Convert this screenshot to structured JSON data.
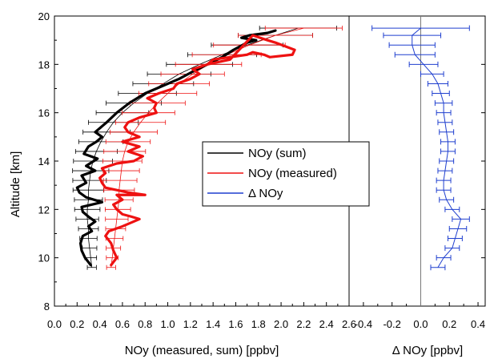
{
  "chart_data": [
    {
      "type": "line",
      "panel": "left",
      "xlabel": "NOy (measured, sum) [ppbv]",
      "ylabel": "Altitude [km]",
      "xlim": [
        0.0,
        2.6
      ],
      "ylim": [
        8,
        20
      ],
      "xticks": [
        "0.0",
        "0.2",
        "0.4",
        "0.6",
        "0.8",
        "1.0",
        "1.2",
        "1.4",
        "1.6",
        "1.8",
        "2.0",
        "2.2",
        "2.4",
        "2.6"
      ],
      "yticks": [
        "8",
        "10",
        "12",
        "14",
        "16",
        "18",
        "20"
      ],
      "legend": {
        "position": "center-right",
        "entries": [
          "NOy (sum)",
          "NOy (measured)",
          "Δ NOy"
        ]
      },
      "series": [
        {
          "name": "NOy (sum)",
          "color": "#000000",
          "style": "thick-trace",
          "x": [
            0.32,
            0.27,
            0.24,
            0.23,
            0.25,
            0.33,
            0.3,
            0.36,
            0.3,
            0.25,
            0.24,
            0.42,
            0.28,
            0.22,
            0.2,
            0.28,
            0.24,
            0.36,
            0.28,
            0.38,
            0.26,
            0.3,
            0.37,
            0.42,
            0.36,
            0.46,
            0.55,
            0.66,
            0.8,
            0.95,
            1.1,
            1.22,
            1.35,
            1.48,
            1.58,
            1.7,
            1.78,
            1.65,
            1.72,
            1.88,
            1.95
          ],
          "y": [
            9.7,
            10.0,
            10.3,
            10.6,
            10.9,
            11.1,
            11.3,
            11.5,
            11.7,
            11.9,
            12.1,
            12.3,
            12.5,
            12.7,
            12.9,
            13.1,
            13.4,
            13.6,
            13.8,
            14.1,
            14.3,
            14.6,
            14.8,
            15.0,
            15.2,
            15.6,
            16.0,
            16.4,
            16.8,
            17.1,
            17.4,
            17.7,
            18.0,
            18.3,
            18.6,
            18.9,
            19.0,
            19.1,
            19.2,
            19.3,
            19.4
          ]
        },
        {
          "name": "NOy (measured)",
          "color": "#ee1111",
          "style": "thick-trace",
          "x": [
            0.5,
            0.55,
            0.52,
            0.5,
            0.45,
            0.48,
            0.6,
            0.7,
            0.75,
            0.68,
            0.6,
            0.55,
            0.52,
            0.6,
            0.55,
            0.8,
            0.65,
            0.55,
            0.45,
            0.42,
            0.4,
            0.45,
            0.42,
            0.55,
            0.7,
            0.78,
            0.65,
            0.75,
            0.6,
            0.75,
            0.65,
            0.62,
            0.65,
            0.75,
            0.9,
            0.88,
            0.9,
            0.82,
            0.92,
            1.05,
            1.08,
            1.2,
            1.28,
            1.22,
            1.35,
            1.4,
            1.55,
            1.7,
            1.75,
            1.85,
            1.9,
            2.1,
            2.12,
            1.95,
            1.88,
            1.75,
            1.55,
            1.45,
            1.35
          ],
          "y": [
            9.7,
            10.0,
            10.3,
            10.6,
            10.9,
            11.1,
            11.3,
            11.5,
            11.6,
            11.7,
            11.8,
            12.0,
            12.2,
            12.4,
            12.6,
            12.6,
            12.7,
            12.8,
            12.9,
            13.1,
            13.3,
            13.5,
            13.7,
            13.9,
            14.0,
            14.2,
            14.4,
            14.6,
            14.8,
            15.0,
            15.2,
            15.4,
            15.6,
            15.8,
            16.0,
            16.2,
            16.4,
            16.6,
            16.8,
            17.0,
            17.2,
            17.4,
            17.6,
            17.8,
            18.0,
            18.2,
            18.3,
            18.4,
            18.5,
            18.4,
            18.3,
            18.4,
            18.6,
            18.9,
            19.0,
            19.2,
            18.2,
            18.1,
            18.0
          ]
        }
      ],
      "profiles": [
        {
          "color": "#000000",
          "y": [
            9.6,
            10.0,
            10.4,
            10.8,
            11.2,
            11.6,
            12.0,
            12.4,
            12.8,
            13.2,
            13.6,
            14.0,
            14.4,
            14.8,
            15.2,
            15.6,
            16.0,
            16.4,
            16.8,
            17.2,
            17.6,
            18.0,
            18.4,
            18.8,
            19.2,
            19.5
          ],
          "x": [
            0.33,
            0.32,
            0.31,
            0.3,
            0.3,
            0.29,
            0.29,
            0.3,
            0.3,
            0.31,
            0.32,
            0.34,
            0.37,
            0.41,
            0.46,
            0.52,
            0.6,
            0.7,
            0.82,
            0.96,
            1.1,
            1.28,
            1.48,
            1.7,
            1.95,
            2.15
          ]
        },
        {
          "color": "#ee1111",
          "y": [
            9.6,
            10.0,
            10.4,
            10.8,
            11.2,
            11.6,
            12.0,
            12.4,
            12.8,
            13.2,
            13.6,
            14.0,
            14.4,
            14.8,
            15.2,
            15.6,
            16.0,
            16.4,
            16.8,
            17.2,
            17.6,
            18.0,
            18.4,
            18.8,
            19.2,
            19.5
          ],
          "x": [
            0.5,
            0.51,
            0.52,
            0.53,
            0.54,
            0.55,
            0.56,
            0.57,
            0.57,
            0.58,
            0.59,
            0.6,
            0.62,
            0.65,
            0.7,
            0.76,
            0.83,
            0.91,
            1.0,
            1.1,
            1.22,
            1.36,
            1.52,
            1.72,
            1.95,
            2.2
          ]
        }
      ]
    },
    {
      "type": "line",
      "panel": "right",
      "xlabel": "Δ NOy [ppbv]",
      "xlim": [
        -0.5,
        0.45
      ],
      "ylim": [
        8,
        20
      ],
      "xticks": [
        "-0.4",
        "-0.2",
        "0.0",
        "0.2",
        "0.4"
      ],
      "series": [
        {
          "name": "Δ NOy",
          "color": "#1f3fcf",
          "y": [
            9.6,
            10.0,
            10.4,
            10.8,
            11.2,
            11.6,
            12.0,
            12.4,
            12.8,
            13.2,
            13.6,
            14.0,
            14.4,
            14.8,
            15.2,
            15.6,
            16.0,
            16.4,
            16.8,
            17.2,
            17.6,
            18.0,
            18.4,
            18.8,
            19.2,
            19.5
          ],
          "x": [
            0.12,
            0.16,
            0.22,
            0.24,
            0.26,
            0.28,
            0.22,
            0.18,
            0.16,
            0.16,
            0.17,
            0.18,
            0.19,
            0.19,
            0.18,
            0.17,
            0.16,
            0.16,
            0.14,
            0.12,
            0.08,
            0.02,
            -0.04,
            -0.06,
            -0.06,
            0.0
          ],
          "xerr": [
            0.05,
            0.05,
            0.05,
            0.05,
            0.06,
            0.06,
            0.05,
            0.05,
            0.05,
            0.05,
            0.05,
            0.05,
            0.05,
            0.05,
            0.05,
            0.05,
            0.05,
            0.06,
            0.06,
            0.07,
            0.08,
            0.1,
            0.14,
            0.16,
            0.2,
            0.34
          ]
        }
      ]
    }
  ]
}
